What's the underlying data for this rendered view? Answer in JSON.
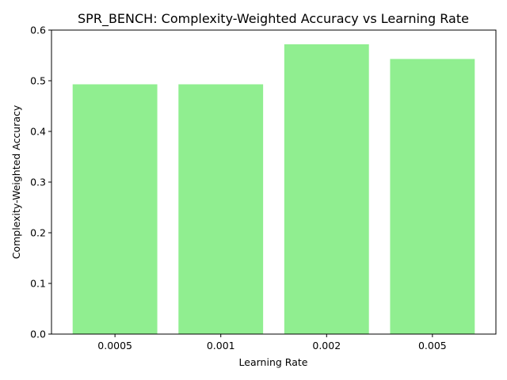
{
  "chart_data": {
    "type": "bar",
    "title": "SPR_BENCH: Complexity-Weighted Accuracy vs Learning Rate",
    "xlabel": "Learning Rate",
    "ylabel": "Complexity-Weighted Accuracy",
    "categories": [
      "0.0005",
      "0.001",
      "0.002",
      "0.005"
    ],
    "values": [
      0.493,
      0.493,
      0.572,
      0.543
    ],
    "ylim": [
      0,
      0.6
    ],
    "yticks": [
      "0.0",
      "0.1",
      "0.2",
      "0.3",
      "0.4",
      "0.5",
      "0.6"
    ],
    "bar_color": "#90ee90",
    "grid": false
  }
}
